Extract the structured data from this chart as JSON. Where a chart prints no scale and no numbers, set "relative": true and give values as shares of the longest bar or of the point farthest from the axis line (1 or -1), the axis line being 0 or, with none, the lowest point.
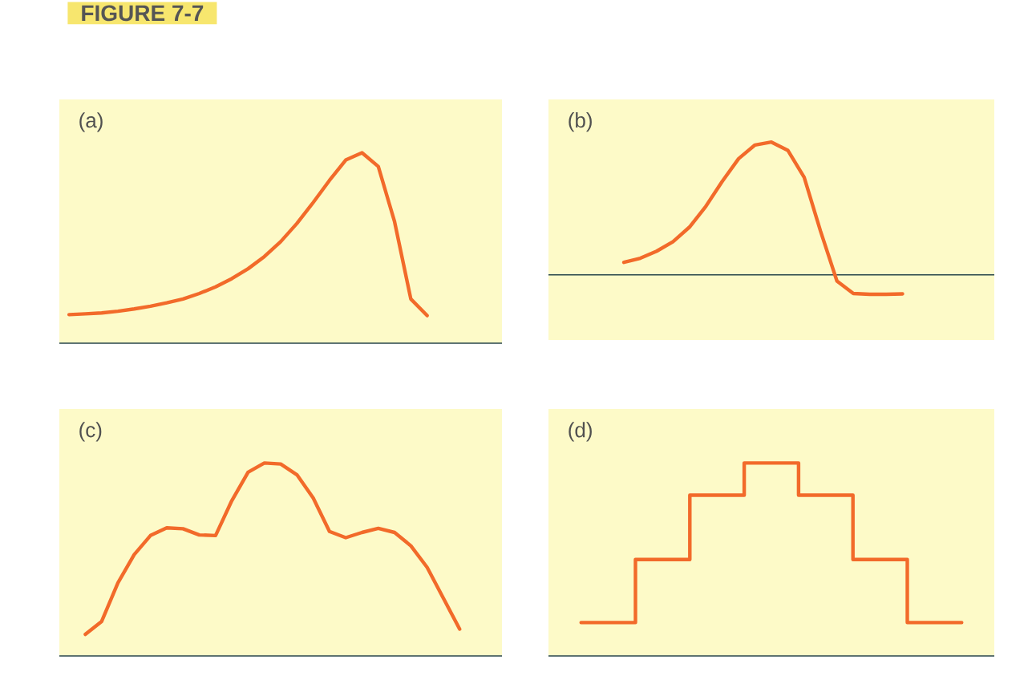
{
  "chart_data": [
    {
      "type": "line",
      "title": "FIGURE 7-7",
      "annotations": [
        "(a)"
      ],
      "relative": true,
      "color": "#f26a2a",
      "categories": [
        null,
        null,
        null,
        null,
        null,
        null,
        null,
        null,
        null,
        null,
        null,
        null,
        null,
        null,
        null,
        null,
        null,
        null,
        null,
        null,
        null,
        null,
        null,
        null,
        null,
        null,
        null
      ],
      "values": [
        0.15,
        0.154,
        0.159,
        0.168,
        0.18,
        0.194,
        0.212,
        0.232,
        0.261,
        0.296,
        0.339,
        0.391,
        0.455,
        0.533,
        0.629,
        0.739,
        0.855,
        0.962,
        1.0,
        0.928,
        0.638,
        0.232,
        0.145,
        null,
        null,
        null,
        null
      ]
    },
    {
      "type": "line",
      "annotations": [
        "(b)"
      ],
      "relative": true,
      "color": "#f26a2a",
      "categories": [
        null,
        null,
        null,
        null,
        null,
        null,
        null,
        null,
        null,
        null,
        null,
        null,
        null,
        null,
        null,
        null,
        null,
        null,
        null,
        null,
        null,
        null,
        null,
        null,
        null,
        null,
        null
      ],
      "values": [
        null,
        null,
        null,
        null,
        0.094,
        0.125,
        0.178,
        0.25,
        0.359,
        0.516,
        0.703,
        0.875,
        0.978,
        1.0,
        0.938,
        0.734,
        0.328,
        -0.047,
        -0.141,
        -0.147,
        -0.147,
        -0.144,
        null,
        null,
        null,
        null,
        null
      ]
    },
    {
      "type": "line",
      "annotations": [
        "(c)"
      ],
      "relative": true,
      "color": "#f26a2a",
      "categories": [
        null,
        null,
        null,
        null,
        null,
        null,
        null,
        null,
        null,
        null,
        null,
        null,
        null,
        null,
        null,
        null,
        null,
        null,
        null,
        null,
        null,
        null,
        null,
        null,
        null,
        null,
        null
      ],
      "values": [
        null,
        0.112,
        0.179,
        0.379,
        0.525,
        0.624,
        0.664,
        0.659,
        0.627,
        0.624,
        0.805,
        0.952,
        1.0,
        0.995,
        0.939,
        0.819,
        0.645,
        0.613,
        0.64,
        0.661,
        0.64,
        0.571,
        0.459,
        0.299,
        0.139,
        null,
        null
      ]
    },
    {
      "type": "step",
      "annotations": [
        "(d)"
      ],
      "relative": true,
      "color": "#f26a2a",
      "categories": [
        null,
        null,
        null,
        null,
        null,
        null,
        null,
        null
      ],
      "values": [
        0.173,
        0.5,
        0.833,
        1.0,
        0.833,
        0.5,
        0.173,
        0.173
      ]
    }
  ]
}
